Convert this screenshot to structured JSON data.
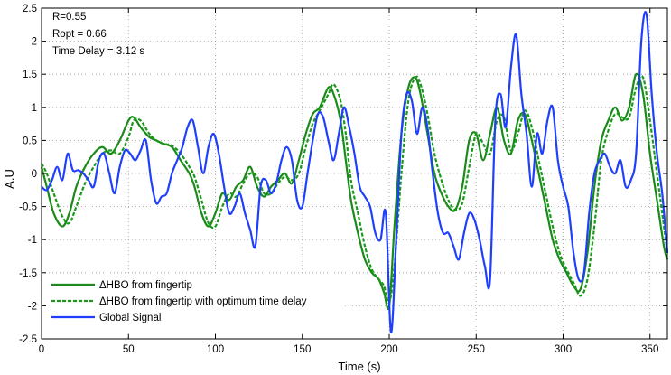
{
  "colors": {
    "fingertip": "#1a8a1a",
    "fingertip_delay": "#1a9a1a",
    "global": "#1f3fff",
    "grid": "#9a9a9a",
    "axis": "#000000"
  },
  "chart_data": {
    "type": "line",
    "title": "",
    "xlabel": "Time (s)",
    "ylabel": "A.U",
    "xlim": [
      0,
      360
    ],
    "ylim": [
      -2.5,
      2.5
    ],
    "xticks": [
      0,
      50,
      100,
      150,
      200,
      250,
      300,
      350
    ],
    "yticks": [
      -2.5,
      -2,
      -1.5,
      -1,
      -0.5,
      0,
      0.5,
      1,
      1.5,
      2,
      2.5
    ],
    "xtick_labels": [
      "0",
      "50",
      "100",
      "150",
      "200",
      "250",
      "300",
      "350"
    ],
    "ytick_labels": [
      "-2.5",
      "-2",
      "-1.5",
      "-1",
      "-0.5",
      "0",
      "0.5",
      "1",
      "1.5",
      "2",
      "2.5"
    ],
    "grid": "dotted",
    "legend_position": "bottom-left",
    "annotations": [
      "R=0.55",
      "Ropt = 0.66",
      "Time Delay = 3.12 s"
    ],
    "series": [
      {
        "name": "ΔHBO from fingertip",
        "style": "solid",
        "x": [
          0,
          3,
          7,
          12,
          16,
          20,
          25,
          30,
          35,
          40,
          45,
          50,
          53,
          57,
          62,
          66,
          70,
          75,
          80,
          85,
          88,
          92,
          96,
          100,
          104,
          108,
          112,
          116,
          120,
          124,
          128,
          132,
          136,
          140,
          144,
          148,
          152,
          156,
          160,
          165,
          168,
          172,
          175,
          178,
          182,
          186,
          190,
          194,
          197,
          200,
          203,
          207,
          211,
          215,
          218,
          222,
          226,
          230,
          234,
          238,
          242,
          246,
          250,
          254,
          258,
          262,
          266,
          270,
          274,
          278,
          282,
          286,
          290,
          294,
          298,
          302,
          306,
          310,
          314,
          318,
          322,
          326,
          330,
          334,
          338,
          342,
          346,
          350,
          354,
          358,
          360
        ],
        "y": [
          0.1,
          -0.2,
          -0.6,
          -0.8,
          -0.6,
          -0.2,
          0.1,
          0.3,
          0.4,
          0.3,
          0.5,
          0.8,
          0.85,
          0.7,
          0.55,
          0.5,
          0.45,
          0.4,
          0.2,
          0.0,
          -0.2,
          -0.6,
          -0.8,
          -0.6,
          -0.3,
          -0.4,
          -0.2,
          -0.1,
          0.1,
          -0.2,
          -0.35,
          -0.2,
          -0.1,
          0.0,
          -0.15,
          0.2,
          0.6,
          0.9,
          1.0,
          1.3,
          1.2,
          0.8,
          0.2,
          -0.4,
          -0.9,
          -1.3,
          -1.5,
          -1.6,
          -1.8,
          -2.0,
          -0.8,
          0.6,
          1.3,
          1.45,
          1.2,
          0.6,
          0.0,
          -0.3,
          -0.5,
          -0.55,
          -0.2,
          0.5,
          0.6,
          0.2,
          0.6,
          1.0,
          0.5,
          0.3,
          0.8,
          0.9,
          0.5,
          0.0,
          -0.5,
          -1.0,
          -1.3,
          -1.5,
          -1.7,
          -1.75,
          -1.2,
          -0.2,
          0.5,
          0.8,
          1.0,
          0.8,
          1.0,
          1.5,
          1.2,
          0.3,
          -0.4,
          -1.1,
          -1.3
        ]
      },
      {
        "name": "ΔHBO from fingertip with optimum time delay",
        "style": "dashed",
        "x": [
          0,
          3,
          7,
          12,
          16,
          20,
          25,
          30,
          35,
          40,
          45,
          50,
          53,
          57,
          62,
          66,
          70,
          75,
          80,
          85,
          88,
          92,
          96,
          100,
          104,
          108,
          112,
          116,
          120,
          124,
          128,
          132,
          136,
          140,
          144,
          148,
          152,
          156,
          160,
          165,
          168,
          172,
          175,
          178,
          182,
          186,
          190,
          194,
          197,
          200,
          203,
          207,
          211,
          215,
          218,
          222,
          226,
          230,
          234,
          238,
          242,
          246,
          250,
          254,
          258,
          262,
          266,
          270,
          274,
          278,
          282,
          286,
          290,
          294,
          298,
          302,
          306,
          310,
          314,
          318,
          322,
          326,
          330,
          334,
          338,
          342,
          346,
          350,
          354,
          358,
          360
        ],
        "y": [
          0.15,
          0.0,
          -0.3,
          -0.65,
          -0.75,
          -0.5,
          -0.15,
          0.1,
          0.3,
          0.35,
          0.3,
          0.55,
          0.8,
          0.8,
          0.6,
          0.5,
          0.45,
          0.42,
          0.3,
          0.1,
          -0.05,
          -0.4,
          -0.75,
          -0.8,
          -0.5,
          -0.3,
          -0.35,
          -0.15,
          0.0,
          -0.05,
          -0.3,
          -0.3,
          -0.15,
          -0.05,
          -0.1,
          0.0,
          0.4,
          0.75,
          0.95,
          1.2,
          1.35,
          1.1,
          0.6,
          -0.1,
          -0.6,
          -1.1,
          -1.45,
          -1.6,
          -1.7,
          -1.95,
          -1.4,
          0.0,
          1.1,
          1.45,
          1.35,
          0.9,
          0.3,
          -0.1,
          -0.4,
          -0.55,
          -0.45,
          0.1,
          0.6,
          0.45,
          0.3,
          0.8,
          0.85,
          0.35,
          0.6,
          0.95,
          0.7,
          0.2,
          -0.3,
          -0.8,
          -1.2,
          -1.45,
          -1.65,
          -1.85,
          -1.6,
          -0.8,
          0.2,
          0.65,
          0.9,
          0.85,
          0.85,
          1.3,
          1.45,
          0.8,
          0.0,
          -0.8,
          -1.2
        ]
      },
      {
        "name": "Global Signal",
        "style": "solid",
        "x": [
          0,
          3,
          6,
          9,
          12,
          15,
          18,
          21,
          24,
          27,
          30,
          33,
          36,
          39,
          42,
          45,
          48,
          51,
          54,
          57,
          60,
          63,
          66,
          69,
          72,
          75,
          78,
          81,
          84,
          87,
          90,
          93,
          96,
          99,
          102,
          105,
          108,
          111,
          114,
          117,
          120,
          123,
          126,
          129,
          132,
          135,
          138,
          141,
          144,
          147,
          150,
          153,
          156,
          159,
          162,
          165,
          168,
          171,
          174,
          177,
          180,
          183,
          186,
          189,
          192,
          195,
          198,
          201,
          204,
          207,
          210,
          213,
          216,
          219,
          222,
          225,
          228,
          231,
          234,
          237,
          240,
          243,
          246,
          249,
          252,
          255,
          258,
          261,
          264,
          267,
          270,
          273,
          276,
          279,
          282,
          285,
          288,
          291,
          294,
          297,
          300,
          303,
          306,
          309,
          312,
          315,
          318,
          321,
          324,
          327,
          330,
          333,
          336,
          339,
          342,
          345,
          348,
          351,
          354,
          357,
          360
        ],
        "y": [
          -0.2,
          -0.25,
          -0.1,
          0.1,
          -0.1,
          0.3,
          0.05,
          0.05,
          0.0,
          -0.1,
          -0.2,
          0.2,
          0.3,
          0.0,
          -0.3,
          0.1,
          0.35,
          0.3,
          0.2,
          0.35,
          0.5,
          -0.1,
          -0.45,
          -0.35,
          -0.3,
          0.0,
          0.2,
          0.4,
          0.7,
          0.8,
          0.4,
          0.0,
          0.4,
          0.6,
          0.3,
          -0.2,
          -0.6,
          -0.5,
          -0.3,
          -0.6,
          -0.85,
          -1.1,
          -0.2,
          -0.1,
          -0.3,
          -0.15,
          0.2,
          0.4,
          0.2,
          -0.4,
          -0.5,
          0.0,
          0.5,
          0.9,
          0.85,
          0.5,
          0.2,
          0.6,
          1.0,
          0.7,
          0.3,
          -0.2,
          -0.35,
          -0.5,
          -0.9,
          -1.0,
          -0.6,
          -2.4,
          -1.0,
          0.6,
          1.2,
          1.1,
          0.6,
          1.0,
          0.7,
          0.0,
          -0.6,
          -0.9,
          -0.9,
          -1.1,
          -1.3,
          -0.9,
          -0.6,
          -0.7,
          -1.0,
          -1.4,
          -1.6,
          0.8,
          1.2,
          0.7,
          1.6,
          2.1,
          1.2,
          0.6,
          -0.2,
          0.6,
          0.3,
          0.8,
          1.0,
          0.2,
          -0.2,
          -0.5,
          -1.2,
          -1.6,
          -1.5,
          -0.6,
          0.0,
          0.2,
          0.3,
          0.1,
          0.0,
          0.2,
          -0.2,
          -0.1,
          0.3,
          2.0,
          2.4,
          1.2,
          0.3,
          -0.3,
          -1.2
        ]
      }
    ]
  }
}
